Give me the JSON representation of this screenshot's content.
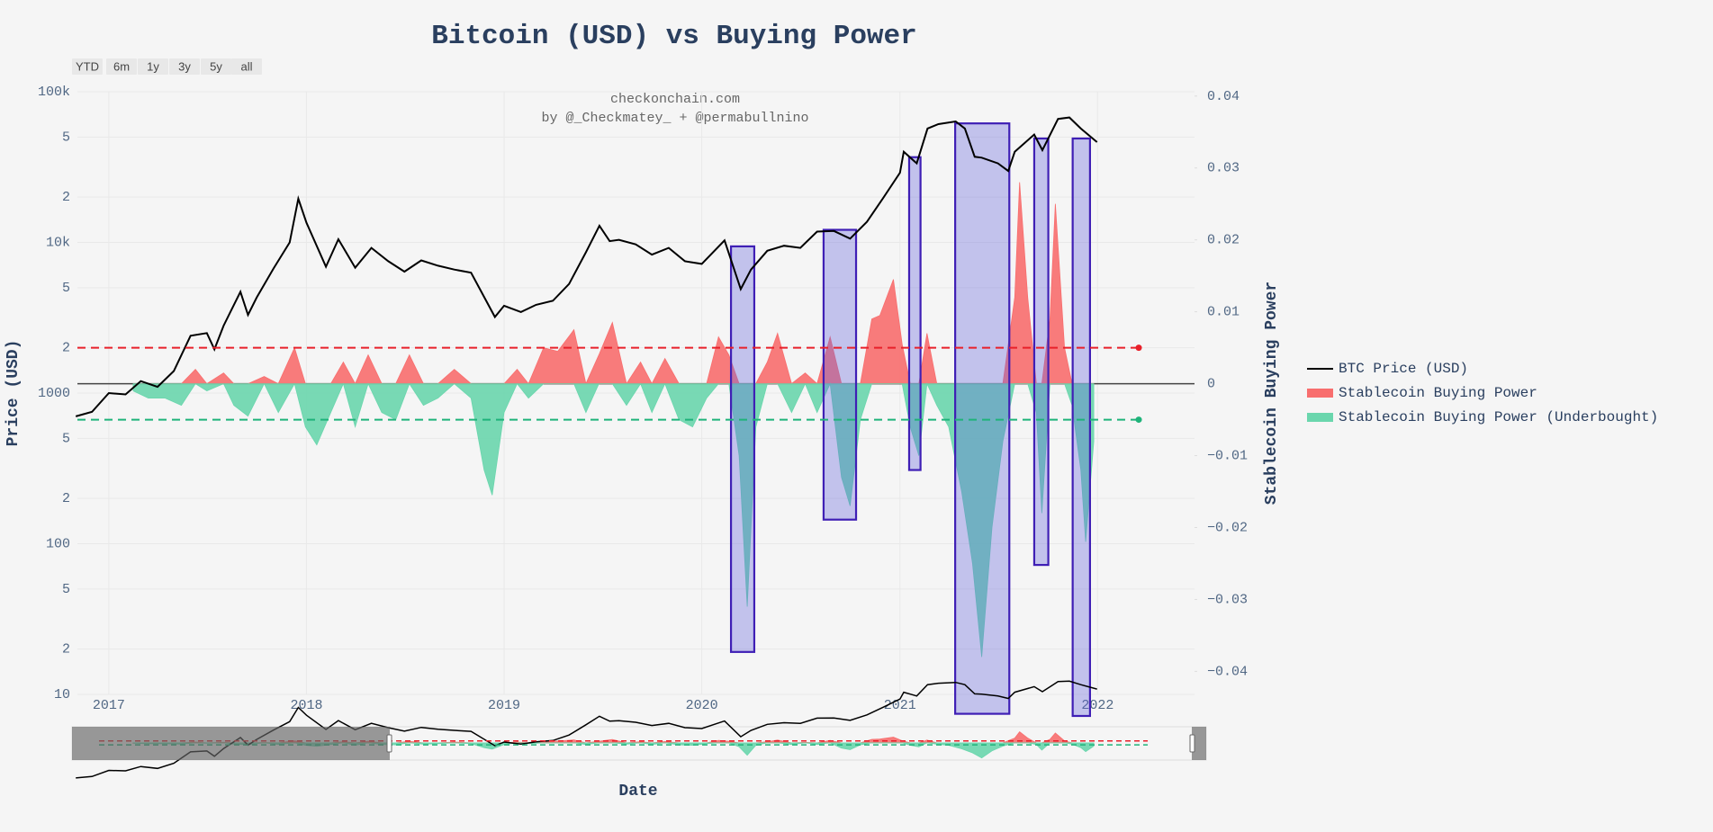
{
  "chart_data": {
    "type": "line",
    "title": "Bitcoin (USD) vs Buying Power",
    "annotation": [
      "checkonchain.com",
      "by @_Checkmatey_ + @permabullnino"
    ],
    "range_buttons": [
      "YTD",
      "6m",
      "1y",
      "3y",
      "5y",
      "all"
    ],
    "x_label": "Date",
    "y_label": "Price (USD)",
    "y2_label": "Stablecoin Buying Power",
    "xlim": [
      "2016-11-04",
      "2022-06-29"
    ],
    "xticks": [
      {
        "value": "2017-01-01",
        "label": "2017"
      },
      {
        "value": "2018-01-01",
        "label": "2018"
      },
      {
        "value": "2019-01-01",
        "label": "2019"
      },
      {
        "value": "2020-01-01",
        "label": "2020"
      },
      {
        "value": "2021-01-01",
        "label": "2021"
      },
      {
        "value": "2022-01-01",
        "label": "2022"
      }
    ],
    "ylim": [
      10,
      100000
    ],
    "log_y": true,
    "yticks": [
      {
        "value": 100000,
        "label": "100k"
      },
      {
        "value": 50000,
        "label": "5"
      },
      {
        "value": 20000,
        "label": "2"
      },
      {
        "value": 10000,
        "label": "10k"
      },
      {
        "value": 5000,
        "label": "5"
      },
      {
        "value": 2000,
        "label": "2"
      },
      1000,
      {
        "value": 500,
        "label": "5"
      },
      {
        "value": 200,
        "label": "2"
      },
      100,
      {
        "value": 50,
        "label": "5"
      },
      {
        "value": 20,
        "label": "2"
      },
      10
    ],
    "y2lim": [
      -0.0432,
      0.0406
    ],
    "y2ticks": [
      0.04,
      0.03,
      0.02,
      0.01,
      0,
      {
        "value": -0.01,
        "label": "−0.01"
      },
      {
        "value": -0.02,
        "label": "−0.02"
      },
      {
        "value": -0.03,
        "label": "−0.03"
      },
      {
        "value": -0.04,
        "label": "−0.04"
      }
    ],
    "grid": true,
    "legend_position": "right",
    "thresholds": [
      {
        "value": 0.005,
        "color": "#e8202a"
      },
      {
        "value": -0.005,
        "color": "#1fb37a"
      }
    ],
    "threshold_end": "2022-03-18",
    "highlight_color": "#3f1fb5",
    "highlights": [
      {
        "x0": "2020-02-24",
        "x1": "2020-04-07",
        "y0": -0.0373,
        "y1": 0.0191
      },
      {
        "x0": "2020-08-13",
        "x1": "2020-10-12",
        "y0": -0.0189,
        "y1": 0.0214
      },
      {
        "x0": "2021-01-18",
        "x1": "2021-02-08",
        "y0": -0.012,
        "y1": 0.0315
      },
      {
        "x0": "2021-04-13",
        "x1": "2021-07-22",
        "y0": -0.0459,
        "y1": 0.0362
      },
      {
        "x0": "2021-09-06",
        "x1": "2021-10-02",
        "y0": -0.0252,
        "y1": 0.0341
      },
      {
        "x0": "2021-11-16",
        "x1": "2021-12-18",
        "y0": -0.0462,
        "y1": 0.0341
      }
    ],
    "bp_dates": [
      "2017-02-15",
      "2017-03-15",
      "2017-04-15",
      "2017-05-15",
      "2017-06-10",
      "2017-07-01",
      "2017-08-01",
      "2017-08-20",
      "2017-09-15",
      "2017-10-15",
      "2017-11-10",
      "2017-12-10",
      "2017-12-30",
      "2018-01-20",
      "2018-02-15",
      "2018-03-10",
      "2018-04-01",
      "2018-04-25",
      "2018-05-20",
      "2018-06-15",
      "2018-07-10",
      "2018-08-05",
      "2018-09-01",
      "2018-10-01",
      "2018-11-01",
      "2018-11-25",
      "2018-12-10",
      "2019-01-01",
      "2019-01-25",
      "2019-02-15",
      "2019-03-15",
      "2019-04-10",
      "2019-05-10",
      "2019-06-01",
      "2019-06-25",
      "2019-07-20",
      "2019-08-15",
      "2019-09-10",
      "2019-10-01",
      "2019-10-25",
      "2019-11-20",
      "2019-12-15",
      "2020-01-10",
      "2020-02-01",
      "2020-02-20",
      "2020-03-10",
      "2020-03-25",
      "2020-04-10",
      "2020-05-01",
      "2020-05-20",
      "2020-06-15",
      "2020-07-10",
      "2020-08-01",
      "2020-08-25",
      "2020-09-15",
      "2020-10-01",
      "2020-10-20",
      "2020-11-10",
      "2020-11-25",
      "2020-12-20",
      "2021-01-05",
      "2021-01-20",
      "2021-02-05",
      "2021-02-20",
      "2021-03-10",
      "2021-04-01",
      "2021-04-25",
      "2021-05-15",
      "2021-06-01",
      "2021-06-20",
      "2021-07-10",
      "2021-08-01",
      "2021-08-10",
      "2021-08-25",
      "2021-09-10",
      "2021-09-20",
      "2021-10-05",
      "2021-10-15",
      "2021-11-01",
      "2021-11-15",
      "2021-12-01",
      "2021-12-10",
      "2021-12-25"
    ],
    "series": [
      {
        "name": "BTC Price (USD)",
        "type": "line",
        "axis": "y",
        "color": "#000000",
        "x": [
          "2016-11-01",
          "2016-12-01",
          "2017-01-01",
          "2017-02-01",
          "2017-03-01",
          "2017-04-01",
          "2017-05-01",
          "2017-06-01",
          "2017-07-01",
          "2017-07-15",
          "2017-08-01",
          "2017-09-01",
          "2017-09-15",
          "2017-10-01",
          "2017-11-01",
          "2017-12-01",
          "2017-12-17",
          "2018-01-01",
          "2018-02-06",
          "2018-03-01",
          "2018-04-01",
          "2018-05-01",
          "2018-06-01",
          "2018-07-01",
          "2018-08-01",
          "2018-09-01",
          "2018-10-01",
          "2018-11-01",
          "2018-12-15",
          "2019-01-01",
          "2019-02-01",
          "2019-03-01",
          "2019-04-01",
          "2019-05-01",
          "2019-06-01",
          "2019-06-26",
          "2019-07-15",
          "2019-08-01",
          "2019-09-01",
          "2019-10-01",
          "2019-11-01",
          "2019-12-01",
          "2020-01-01",
          "2020-02-12",
          "2020-03-13",
          "2020-04-01",
          "2020-05-01",
          "2020-06-01",
          "2020-07-01",
          "2020-08-01",
          "2020-09-01",
          "2020-10-01",
          "2020-11-01",
          "2020-12-01",
          "2021-01-01",
          "2021-01-08",
          "2021-02-01",
          "2021-02-21",
          "2021-03-13",
          "2021-04-14",
          "2021-05-01",
          "2021-05-19",
          "2021-06-01",
          "2021-07-01",
          "2021-07-20",
          "2021-08-01",
          "2021-09-06",
          "2021-09-21",
          "2021-10-20",
          "2021-11-10",
          "2021-12-01",
          "2021-12-31"
        ],
        "values": [
          700,
          750,
          1000,
          980,
          1200,
          1100,
          1400,
          2400,
          2500,
          1950,
          2800,
          4700,
          3300,
          4300,
          6700,
          10000,
          19500,
          13500,
          6900,
          10500,
          6800,
          9200,
          7500,
          6400,
          7600,
          7000,
          6600,
          6300,
          3200,
          3800,
          3450,
          3850,
          4100,
          5300,
          8600,
          12900,
          10200,
          10400,
          9700,
          8300,
          9200,
          7500,
          7200,
          10300,
          4900,
          6600,
          8800,
          9500,
          9200,
          11800,
          11900,
          10600,
          13700,
          19700,
          29000,
          40000,
          33500,
          57000,
          61000,
          63500,
          57000,
          37000,
          36500,
          33500,
          29800,
          40000,
          52000,
          41000,
          66000,
          67500,
          57000,
          46300
        ]
      },
      {
        "name": "Stablecoin Buying Power",
        "type": "area",
        "axis": "y2",
        "color": "#f86e6e",
        "values": [
          0,
          0,
          0,
          0,
          0.002,
          0,
          0.0015,
          0,
          0,
          0.001,
          0,
          0.005,
          0,
          0,
          0,
          0.003,
          0,
          0.004,
          0,
          0,
          0.004,
          0,
          0,
          0.002,
          0,
          0,
          0,
          0,
          0.002,
          0,
          0.005,
          0.0045,
          0.0075,
          0,
          0.004,
          0.0085,
          0,
          0.003,
          0,
          0.0035,
          0,
          0,
          0,
          0.0065,
          0.004,
          0,
          0,
          0,
          0.003,
          0.007,
          0,
          0.0015,
          0,
          0.0065,
          0,
          0,
          0,
          0.009,
          0.0095,
          0.0145,
          0.0055,
          0,
          0,
          0.007,
          0,
          0,
          0,
          0,
          0,
          0,
          0,
          0.012,
          0.028,
          0.012,
          0,
          0,
          0.009,
          0.025,
          0.005,
          0,
          0,
          0,
          0
        ]
      },
      {
        "name": "Stablecoin Buying Power (Underbought)",
        "type": "area",
        "axis": "y2",
        "color": "#6ad6ad",
        "values": [
          -0.001,
          -0.002,
          -0.002,
          -0.003,
          0,
          -0.001,
          0,
          -0.003,
          -0.0045,
          0,
          -0.004,
          0,
          -0.006,
          -0.0085,
          -0.004,
          0,
          -0.006,
          0,
          -0.004,
          -0.005,
          0,
          -0.003,
          -0.002,
          0,
          -0.002,
          -0.012,
          -0.0155,
          -0.004,
          0,
          -0.002,
          0,
          0,
          0,
          -0.004,
          0,
          0,
          -0.003,
          0,
          -0.004,
          0,
          -0.005,
          -0.006,
          -0.002,
          0,
          0,
          -0.01,
          -0.031,
          -0.006,
          0,
          0,
          -0.004,
          0,
          -0.004,
          0,
          -0.013,
          -0.017,
          -0.005,
          0,
          0,
          0,
          0,
          -0.006,
          -0.01,
          0,
          -0.003,
          -0.006,
          -0.015,
          -0.025,
          -0.038,
          -0.02,
          -0.008,
          0,
          0,
          0,
          -0.004,
          -0.018,
          0,
          0,
          0,
          -0.003,
          -0.012,
          -0.022,
          -0.008
        ]
      }
    ]
  }
}
